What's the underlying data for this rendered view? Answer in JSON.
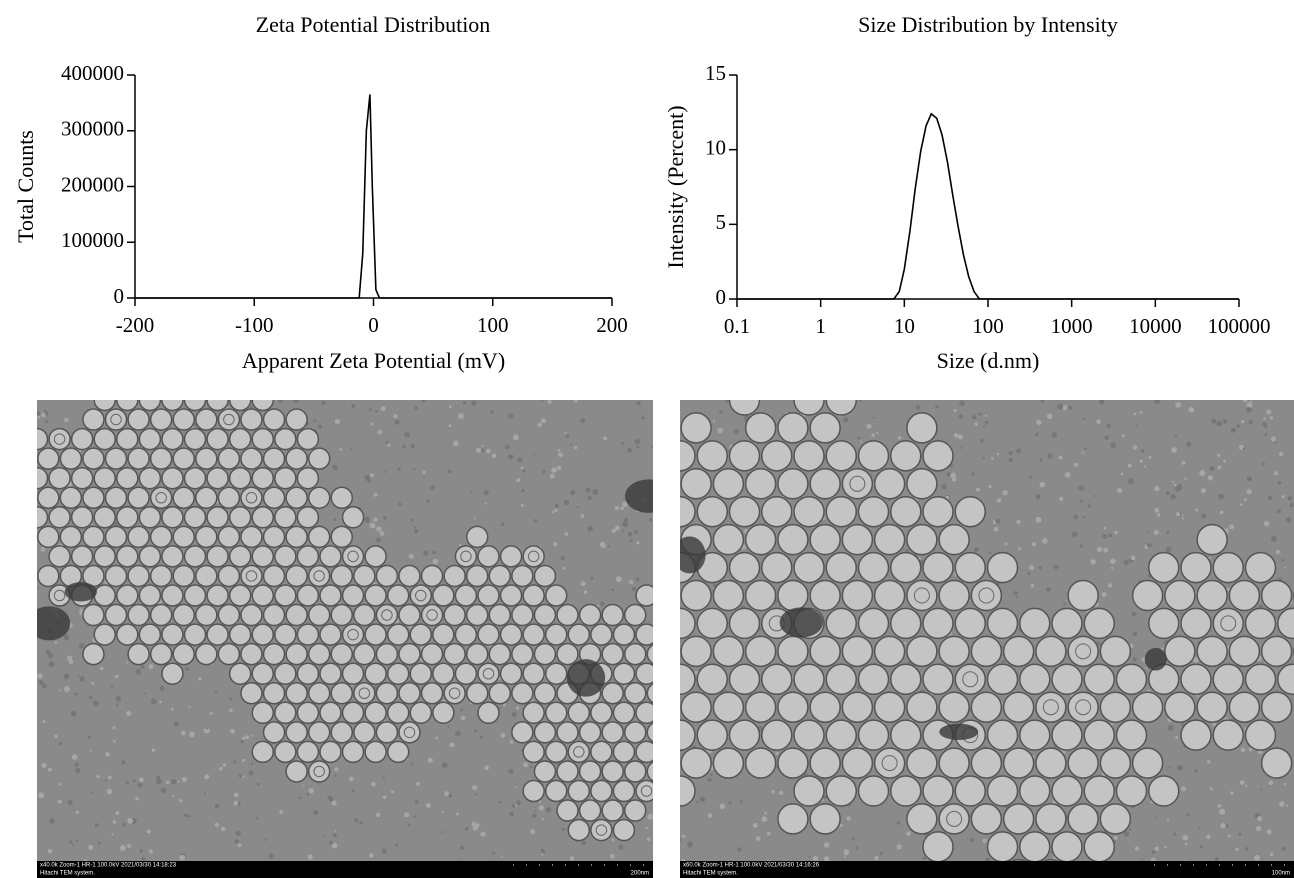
{
  "chart_data": [
    {
      "type": "line",
      "title": "Zeta Potential Distribution",
      "xlabel": "Apparent Zeta Potential (mV)",
      "ylabel": "Total Counts",
      "x": [
        -200,
        -12,
        -9,
        -6,
        -3,
        -1,
        2,
        5,
        200
      ],
      "values": [
        0,
        0,
        80000,
        300000,
        365000,
        200000,
        15000,
        0,
        0
      ],
      "color": "#000000",
      "xlim": [
        -200,
        200
      ],
      "xticks": [
        -200,
        -100,
        0,
        100,
        200
      ],
      "ylim": [
        0,
        400000
      ],
      "yticks": [
        0,
        100000,
        200000,
        300000,
        400000
      ],
      "grid": false,
      "log_x": false
    },
    {
      "type": "line",
      "title": "Size Distribution by Intensity",
      "xlabel": "Size (d.nm)",
      "ylabel": "Intensity (Percent)",
      "x": [
        0.1,
        7.5,
        8.7,
        10,
        11.7,
        13.5,
        15.7,
        18.2,
        21,
        24.4,
        28.2,
        32.7,
        37.8,
        43.8,
        50.7,
        58.8,
        68.1,
        78.8,
        91.3,
        100000
      ],
      "values": [
        0,
        0,
        0.5,
        2,
        4.6,
        7.4,
        9.9,
        11.6,
        12.4,
        12.1,
        11,
        9.2,
        7,
        4.9,
        3,
        1.5,
        0.5,
        0,
        0,
        0
      ],
      "color": "#000000",
      "xlim": [
        0.1,
        100000
      ],
      "xticks": [
        0.1,
        1,
        10,
        100,
        1000,
        10000,
        100000
      ],
      "ylim": [
        0,
        15
      ],
      "yticks": [
        0,
        5,
        10,
        15
      ],
      "grid": false,
      "log_x": true
    }
  ],
  "images": [
    {
      "caption": "x40.0k Zoom-1 HR-1 100.0kV 2021/03/30 14:18:23",
      "system": "Hitachi TEM system.",
      "scale": "200nm"
    },
    {
      "caption": "x60.0k Zoom-1 HR-1 100.0kV 2021/03/30 14:16:26",
      "system": "Hitachi TEM system.",
      "scale": "100nm"
    }
  ]
}
